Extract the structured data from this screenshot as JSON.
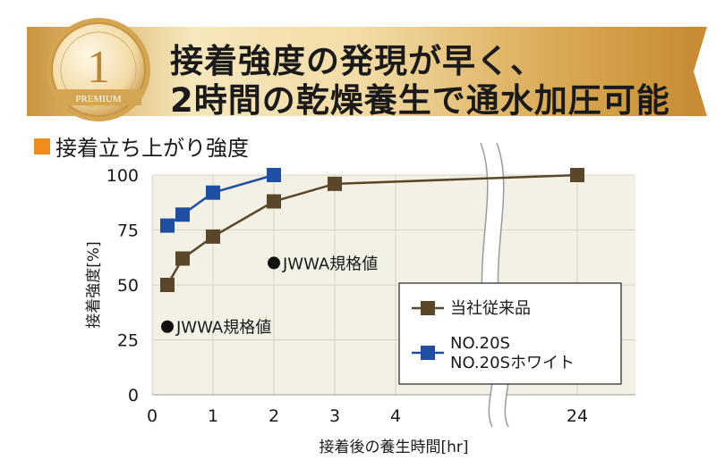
{
  "header": {
    "badge_number": "1",
    "badge_label": "PREMIUM",
    "headline_line1": "接着強度の発現が早く、",
    "headline_line2": "2時間の乾燥養生で通水加圧可能"
  },
  "section": {
    "title": "接着立ち上がり強度",
    "marker_color": "#f08c1e"
  },
  "chart_data": {
    "type": "line",
    "xlabel": "接着後の養生時間[hr]",
    "ylabel": "接着強度[%]",
    "ylim": [
      0,
      100
    ],
    "xticks": [
      "0",
      "1",
      "2",
      "3",
      "4",
      "24"
    ],
    "yticks": [
      "0",
      "25",
      "50",
      "75",
      "100"
    ],
    "axis_break": "between 4 and 24",
    "grid": true,
    "legend_position": "lower-right",
    "series": [
      {
        "name": "当社従来品",
        "color": "#5a4628",
        "marker": "square",
        "x": [
          0.25,
          0.5,
          1,
          2,
          3,
          24
        ],
        "y": [
          50,
          62,
          72,
          88,
          96,
          100
        ]
      },
      {
        "name": "NO.20S\nNO.20Sホワイト",
        "legend_lines": [
          "NO.20S",
          "NO.20Sホワイト"
        ],
        "color": "#1f4fa3",
        "marker": "square",
        "x": [
          0.25,
          0.5,
          1,
          2
        ],
        "y": [
          77,
          82,
          92,
          100
        ]
      }
    ],
    "annotations": [
      {
        "text": "JWWA規格値",
        "x": 0.25,
        "y": 31
      },
      {
        "text": "JWWA規格値",
        "x": 2,
        "y": 60
      }
    ]
  }
}
